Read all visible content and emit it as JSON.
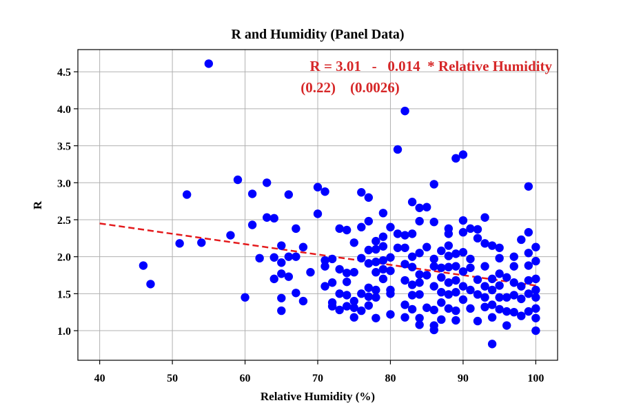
{
  "chart_data": {
    "type": "scatter",
    "title": "R and Humidity (Panel Data)",
    "xlabel": "Relative Humidity (%)",
    "ylabel": "R",
    "xlim": [
      37,
      103
    ],
    "ylim": [
      0.6,
      4.8
    ],
    "xticks": [
      40,
      50,
      60,
      70,
      80,
      90,
      100
    ],
    "yticks": [
      1.0,
      1.5,
      2.0,
      2.5,
      3.0,
      3.5,
      4.0,
      4.5
    ],
    "xtick_labels": [
      "40",
      "50",
      "60",
      "70",
      "80",
      "90",
      "100"
    ],
    "ytick_labels": [
      "1.0",
      "1.5",
      "2.0",
      "2.5",
      "3.0",
      "3.5",
      "4.0",
      "4.5"
    ],
    "grid": true,
    "colors": {
      "points": "#0000ff",
      "fit": "#e41a1c",
      "annotation": "#d62728"
    },
    "series": [
      {
        "type": "scatter",
        "points": [
          [
            46,
            1.88
          ],
          [
            47,
            1.63
          ],
          [
            51,
            2.18
          ],
          [
            52,
            2.84
          ],
          [
            54,
            2.19
          ],
          [
            55,
            4.61
          ],
          [
            58,
            2.29
          ],
          [
            59,
            3.04
          ],
          [
            60,
            1.45
          ],
          [
            61,
            2.85
          ],
          [
            61,
            2.43
          ],
          [
            62,
            1.98
          ],
          [
            63,
            3.0
          ],
          [
            63,
            2.53
          ],
          [
            64,
            2.52
          ],
          [
            64,
            1.99
          ],
          [
            64,
            1.7
          ],
          [
            65,
            2.15
          ],
          [
            65,
            1.92
          ],
          [
            65,
            1.77
          ],
          [
            65,
            1.44
          ],
          [
            65,
            1.27
          ],
          [
            66,
            2.84
          ],
          [
            66,
            2.0
          ],
          [
            66,
            1.73
          ],
          [
            67,
            2.38
          ],
          [
            67,
            2.0
          ],
          [
            67,
            1.51
          ],
          [
            68,
            2.13
          ],
          [
            68,
            1.4
          ],
          [
            69,
            1.79
          ],
          [
            70,
            2.94
          ],
          [
            70,
            2.58
          ],
          [
            71,
            2.88
          ],
          [
            71,
            1.95
          ],
          [
            71,
            1.87
          ],
          [
            71,
            1.6
          ],
          [
            72,
            1.97
          ],
          [
            72,
            1.65
          ],
          [
            72,
            1.38
          ],
          [
            72,
            1.33
          ],
          [
            73,
            2.38
          ],
          [
            73,
            1.83
          ],
          [
            73,
            1.5
          ],
          [
            73,
            1.28
          ],
          [
            74,
            2.36
          ],
          [
            74,
            1.78
          ],
          [
            74,
            1.66
          ],
          [
            74,
            1.48
          ],
          [
            74,
            1.33
          ],
          [
            75,
            2.19
          ],
          [
            75,
            1.79
          ],
          [
            75,
            1.4
          ],
          [
            75,
            1.18
          ],
          [
            75,
            1.31
          ],
          [
            76,
            2.87
          ],
          [
            76,
            2.4
          ],
          [
            76,
            1.98
          ],
          [
            76,
            1.5
          ],
          [
            76,
            1.27
          ],
          [
            77,
            2.8
          ],
          [
            77,
            2.48
          ],
          [
            77,
            2.09
          ],
          [
            77,
            1.91
          ],
          [
            77,
            1.58
          ],
          [
            77,
            1.46
          ],
          [
            77,
            1.34
          ],
          [
            78,
            2.21
          ],
          [
            78,
            2.1
          ],
          [
            78,
            1.93
          ],
          [
            78,
            1.79
          ],
          [
            78,
            1.55
          ],
          [
            78,
            1.45
          ],
          [
            78,
            1.17
          ],
          [
            79,
            2.59
          ],
          [
            79,
            2.27
          ],
          [
            79,
            2.14
          ],
          [
            79,
            1.95
          ],
          [
            79,
            1.83
          ],
          [
            79,
            1.7
          ],
          [
            80,
            2.4
          ],
          [
            80,
            1.99
          ],
          [
            80,
            1.81
          ],
          [
            80,
            1.55
          ],
          [
            80,
            1.5
          ],
          [
            80,
            1.22
          ],
          [
            81,
            3.45
          ],
          [
            81,
            2.31
          ],
          [
            81,
            2.12
          ],
          [
            82,
            3.97
          ],
          [
            82,
            2.29
          ],
          [
            82,
            2.12
          ],
          [
            82,
            1.9
          ],
          [
            82,
            1.68
          ],
          [
            82,
            1.35
          ],
          [
            82,
            1.18
          ],
          [
            83,
            2.74
          ],
          [
            83,
            2.31
          ],
          [
            83,
            2.0
          ],
          [
            83,
            1.86
          ],
          [
            83,
            1.62
          ],
          [
            83,
            1.48
          ],
          [
            83,
            1.29
          ],
          [
            84,
            2.66
          ],
          [
            84,
            2.48
          ],
          [
            84,
            2.05
          ],
          [
            84,
            1.76
          ],
          [
            84,
            1.65
          ],
          [
            84,
            1.49
          ],
          [
            84,
            1.17
          ],
          [
            84,
            1.08
          ],
          [
            85,
            2.67
          ],
          [
            85,
            2.13
          ],
          [
            85,
            1.75
          ],
          [
            85,
            1.31
          ],
          [
            86,
            2.98
          ],
          [
            86,
            2.47
          ],
          [
            86,
            1.97
          ],
          [
            86,
            1.87
          ],
          [
            86,
            1.6
          ],
          [
            86,
            1.28
          ],
          [
            86,
            1.07
          ],
          [
            86,
            1.01
          ],
          [
            87,
            2.08
          ],
          [
            87,
            1.85
          ],
          [
            87,
            1.72
          ],
          [
            87,
            1.52
          ],
          [
            87,
            1.38
          ],
          [
            87,
            1.15
          ],
          [
            88,
            2.38
          ],
          [
            88,
            2.31
          ],
          [
            88,
            2.15
          ],
          [
            88,
            2.01
          ],
          [
            88,
            1.86
          ],
          [
            88,
            1.65
          ],
          [
            88,
            1.49
          ],
          [
            88,
            1.3
          ],
          [
            89,
            3.33
          ],
          [
            89,
            2.04
          ],
          [
            89,
            1.87
          ],
          [
            89,
            1.68
          ],
          [
            89,
            1.52
          ],
          [
            89,
            1.27
          ],
          [
            89,
            1.14
          ],
          [
            90,
            3.38
          ],
          [
            90,
            2.49
          ],
          [
            90,
            2.33
          ],
          [
            90,
            2.06
          ],
          [
            90,
            1.8
          ],
          [
            90,
            1.6
          ],
          [
            90,
            1.42
          ],
          [
            91,
            2.38
          ],
          [
            91,
            1.97
          ],
          [
            91,
            1.85
          ],
          [
            91,
            1.55
          ],
          [
            91,
            1.3
          ],
          [
            92,
            2.37
          ],
          [
            92,
            2.25
          ],
          [
            92,
            1.69
          ],
          [
            92,
            1.49
          ],
          [
            92,
            1.13
          ],
          [
            93,
            2.53
          ],
          [
            93,
            2.18
          ],
          [
            93,
            1.87
          ],
          [
            93,
            1.6
          ],
          [
            93,
            1.45
          ],
          [
            93,
            1.32
          ],
          [
            94,
            2.15
          ],
          [
            94,
            1.7
          ],
          [
            94,
            1.55
          ],
          [
            94,
            1.35
          ],
          [
            94,
            1.18
          ],
          [
            94,
            0.82
          ],
          [
            95,
            2.12
          ],
          [
            95,
            1.98
          ],
          [
            95,
            1.77
          ],
          [
            95,
            1.61
          ],
          [
            95,
            1.45
          ],
          [
            95,
            1.29
          ],
          [
            96,
            1.72
          ],
          [
            96,
            1.45
          ],
          [
            96,
            1.26
          ],
          [
            96,
            1.07
          ],
          [
            97,
            2.0
          ],
          [
            97,
            1.87
          ],
          [
            97,
            1.65
          ],
          [
            97,
            1.48
          ],
          [
            97,
            1.25
          ],
          [
            98,
            2.23
          ],
          [
            98,
            1.6
          ],
          [
            98,
            1.43
          ],
          [
            98,
            1.2
          ],
          [
            99,
            2.95
          ],
          [
            99,
            2.33
          ],
          [
            99,
            2.05
          ],
          [
            99,
            1.88
          ],
          [
            99,
            1.68
          ],
          [
            99,
            1.5
          ],
          [
            99,
            1.26
          ],
          [
            100,
            2.13
          ],
          [
            100,
            1.94
          ],
          [
            100,
            1.7
          ],
          [
            100,
            1.55
          ],
          [
            100,
            1.45
          ],
          [
            100,
            1.3
          ],
          [
            100,
            1.17
          ],
          [
            100,
            1.0
          ]
        ]
      },
      {
        "type": "line",
        "style": "dashed",
        "points": [
          [
            40,
            2.45
          ],
          [
            100,
            1.61
          ]
        ]
      }
    ],
    "annotation": {
      "line1": "R = 3.01   -   0.014  * Relative Humidity",
      "line2": "(0.22)    (0.0026)"
    }
  }
}
